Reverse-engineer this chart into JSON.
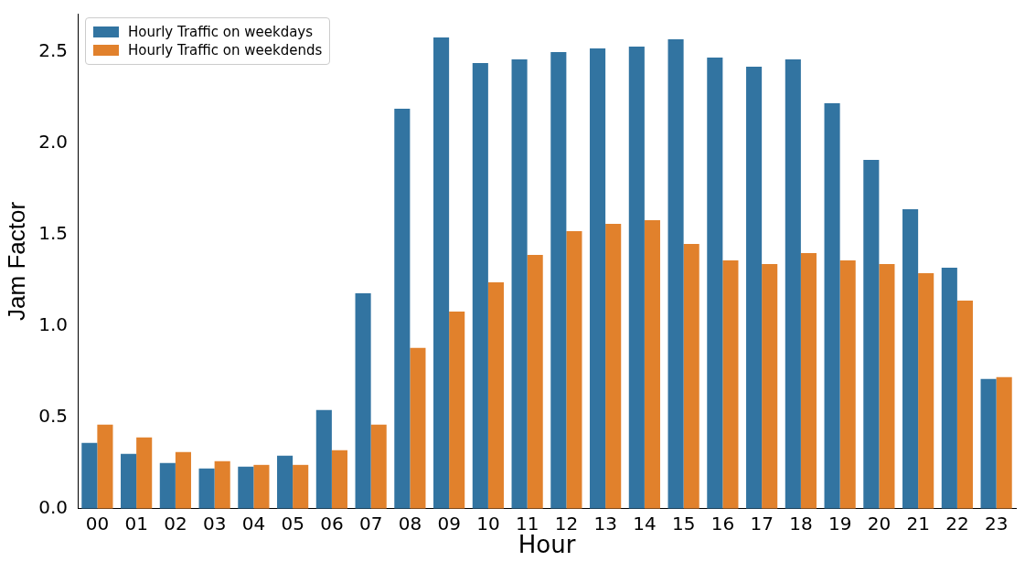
{
  "chart_data": {
    "type": "bar",
    "xlabel": "Hour",
    "ylabel": "Jam Factor",
    "categories": [
      "00",
      "01",
      "02",
      "03",
      "04",
      "05",
      "06",
      "07",
      "08",
      "09",
      "10",
      "11",
      "12",
      "13",
      "14",
      "15",
      "16",
      "17",
      "18",
      "19",
      "20",
      "21",
      "22",
      "23"
    ],
    "series": [
      {
        "name": "Hourly Traffic on weekdays",
        "color": "#3274a1",
        "values": [
          0.36,
          0.3,
          0.25,
          0.22,
          0.23,
          0.29,
          0.54,
          1.18,
          2.19,
          2.58,
          2.44,
          2.46,
          2.5,
          2.52,
          2.53,
          2.57,
          2.47,
          2.42,
          2.46,
          2.22,
          1.91,
          1.64,
          1.32,
          0.71
        ]
      },
      {
        "name": "Hourly Traffic on weekdends",
        "color": "#e1812c",
        "values": [
          0.46,
          0.39,
          0.31,
          0.26,
          0.24,
          0.24,
          0.32,
          0.46,
          0.88,
          1.08,
          1.24,
          1.39,
          1.52,
          1.56,
          1.58,
          1.45,
          1.36,
          1.34,
          1.4,
          1.36,
          1.34,
          1.29,
          1.14,
          0.72
        ]
      }
    ],
    "ylim": [
      0,
      2.71
    ],
    "yticks": [
      {
        "value": 0,
        "label": "0.0"
      },
      {
        "value": 0.5,
        "label": "0.5"
      },
      {
        "value": 1,
        "label": "1.0"
      },
      {
        "value": 1.5,
        "label": "1.5"
      },
      {
        "value": 2,
        "label": "2.0"
      },
      {
        "value": 2.5,
        "label": "2.5"
      }
    ],
    "grid": false,
    "legend": "top left"
  }
}
